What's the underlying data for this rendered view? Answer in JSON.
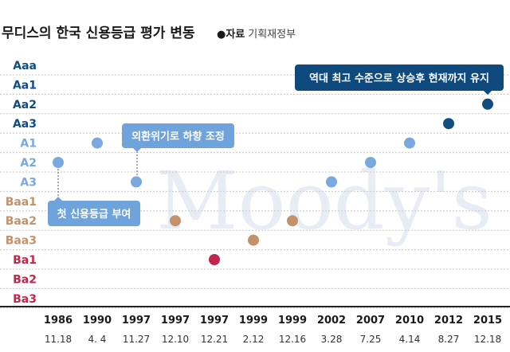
{
  "chart_data": {
    "type": "scatter",
    "title": "무디스의 한국 신용등급 평가 변동",
    "source_label": "●자료",
    "source": "기획재정부",
    "watermark": "Moody's",
    "y_categories": [
      "Aaa",
      "Aa1",
      "Aa2",
      "Aa3",
      "A1",
      "A2",
      "A3",
      "Baa1",
      "Baa2",
      "Baa3",
      "Ba1",
      "Ba2",
      "Ba3"
    ],
    "x_years": [
      "1986",
      "1990",
      "1997",
      "1997",
      "1997",
      "1999",
      "1999",
      "2002",
      "2007",
      "2010",
      "2012",
      "2015"
    ],
    "x_dates": [
      "11.18",
      "4. 4",
      "11.27",
      "12.10",
      "12.21",
      "2.12",
      "12.16",
      "3.28",
      "7.25",
      "4.14",
      "8.27",
      "12.18"
    ],
    "values": [
      "A2",
      "A1",
      "A3",
      "Baa2",
      "Ba1",
      "Baa3",
      "Baa2",
      "A3",
      "A2",
      "A1",
      "Aa3",
      "Aa2"
    ],
    "grade_colors": {
      "Aa": "#124d82",
      "A": "#79a9df",
      "Baa": "#c4926a",
      "Ba": "#c2254a",
      "Aaa": "#124d82"
    },
    "grid": "dotted horizontal",
    "annotations": [
      {
        "text": "첫 신용등급 부여",
        "point_index": 0,
        "color": "#6fa3dc"
      },
      {
        "text": "외환위기로 하향 조정",
        "point_index": 2,
        "color": "#6fa3dc"
      },
      {
        "text": "역대 최고 수준으로 상승후 현재까지 유지",
        "point_index": 11,
        "color": "#0e4a7e"
      }
    ]
  }
}
